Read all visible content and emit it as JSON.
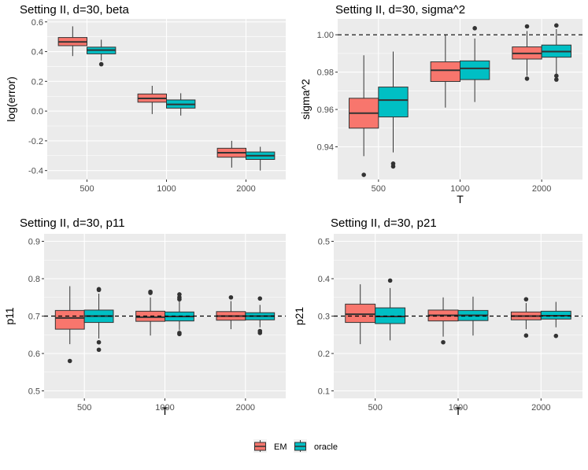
{
  "colors": {
    "EM": "#F8766D",
    "oracle": "#00BFC4",
    "panel_bg": "#EBEBEB",
    "grid": "#FFFFFF"
  },
  "legend": {
    "items": [
      {
        "name": "EM",
        "label": "EM"
      },
      {
        "name": "oracle",
        "label": "oracle"
      }
    ]
  },
  "chart_data": [
    {
      "type": "boxplot",
      "title": "Setting II, d=30, beta",
      "xlabel": "",
      "ylabel": "log(error)",
      "categories": [
        "500",
        "1000",
        "2000"
      ],
      "yticks": [
        -0.4,
        -0.2,
        0.0,
        0.2,
        0.4,
        0.6
      ],
      "ytick_labels": [
        "-0.4",
        "-0.2",
        "0.0",
        "0.2",
        "0.4",
        "0.6"
      ],
      "ylim": [
        -0.46,
        0.62
      ],
      "hline": null,
      "series": [
        {
          "name": "EM",
          "boxes": [
            {
              "lo": 0.37,
              "q1": 0.44,
              "med": 0.465,
              "q3": 0.495,
              "hi": 0.57,
              "outliers": []
            },
            {
              "lo": -0.02,
              "q1": 0.06,
              "med": 0.085,
              "q3": 0.115,
              "hi": 0.17,
              "outliers": []
            },
            {
              "lo": -0.38,
              "q1": -0.31,
              "med": -0.28,
              "q3": -0.25,
              "hi": -0.2,
              "outliers": []
            }
          ]
        },
        {
          "name": "oracle",
          "boxes": [
            {
              "lo": 0.34,
              "q1": 0.385,
              "med": 0.41,
              "q3": 0.43,
              "hi": 0.48,
              "outliers": [
                0.315
              ]
            },
            {
              "lo": -0.03,
              "q1": 0.02,
              "med": 0.045,
              "q3": 0.075,
              "hi": 0.12,
              "outliers": []
            },
            {
              "lo": -0.4,
              "q1": -0.325,
              "med": -0.3,
              "q3": -0.275,
              "hi": -0.24,
              "outliers": []
            }
          ]
        }
      ]
    },
    {
      "type": "boxplot",
      "title": "Setting II, d=30, sigma^2",
      "xlabel": "T",
      "ylabel": "sigma^2",
      "categories": [
        "500",
        "1000",
        "2000"
      ],
      "yticks": [
        0.94,
        0.96,
        0.98,
        1.0
      ],
      "ytick_labels": [
        "0.94",
        "0.96",
        "0.98",
        "1.00"
      ],
      "ylim": [
        0.9225,
        1.0085
      ],
      "hline": 1.0,
      "series": [
        {
          "name": "EM",
          "boxes": [
            {
              "lo": 0.935,
              "q1": 0.95,
              "med": 0.958,
              "q3": 0.966,
              "hi": 0.989,
              "outliers": [
                0.925
              ]
            },
            {
              "lo": 0.961,
              "q1": 0.975,
              "med": 0.981,
              "q3": 0.9855,
              "hi": 1.0,
              "outliers": []
            },
            {
              "lo": 0.978,
              "q1": 0.987,
              "med": 0.99,
              "q3": 0.9935,
              "hi": 1.002,
              "outliers": [
                1.0045,
                0.9765
              ]
            }
          ]
        },
        {
          "name": "oracle",
          "boxes": [
            {
              "lo": 0.937,
              "q1": 0.956,
              "med": 0.965,
              "q3": 0.972,
              "hi": 0.991,
              "outliers": [
                0.931,
                0.9295
              ]
            },
            {
              "lo": 0.964,
              "q1": 0.976,
              "med": 0.982,
              "q3": 0.986,
              "hi": 0.998,
              "outliers": [
                1.0035
              ]
            },
            {
              "lo": 0.979,
              "q1": 0.988,
              "med": 0.991,
              "q3": 0.9945,
              "hi": 1.003,
              "outliers": [
                1.005,
                0.978,
                0.976
              ]
            }
          ]
        }
      ]
    },
    {
      "type": "boxplot",
      "title": "Setting II, d=30, p11",
      "xlabel": "T",
      "ylabel": "p11",
      "categories": [
        "500",
        "1000",
        "2000"
      ],
      "yticks": [
        0.5,
        0.6,
        0.7,
        0.8,
        0.9
      ],
      "ytick_labels": [
        "0.5",
        "0.6",
        "0.7",
        "0.8",
        "0.9"
      ],
      "ylim": [
        0.48,
        0.92
      ],
      "hline": 0.7,
      "series": [
        {
          "name": "EM",
          "boxes": [
            {
              "lo": 0.625,
              "q1": 0.665,
              "med": 0.695,
              "q3": 0.715,
              "hi": 0.78,
              "outliers": [
                0.58
              ]
            },
            {
              "lo": 0.648,
              "q1": 0.686,
              "med": 0.697,
              "q3": 0.713,
              "hi": 0.75,
              "outliers": [
                0.762,
                0.765
              ]
            },
            {
              "lo": 0.665,
              "q1": 0.689,
              "med": 0.7,
              "q3": 0.712,
              "hi": 0.74,
              "outliers": [
                0.75
              ]
            }
          ]
        },
        {
          "name": "oracle",
          "boxes": [
            {
              "lo": 0.64,
              "q1": 0.683,
              "med": 0.7,
              "q3": 0.716,
              "hi": 0.76,
              "outliers": [
                0.61,
                0.63,
                0.77,
                0.772
              ]
            },
            {
              "lo": 0.662,
              "q1": 0.687,
              "med": 0.699,
              "q3": 0.711,
              "hi": 0.74,
              "outliers": [
                0.652,
                0.655,
                0.745,
                0.75,
                0.758
              ]
            },
            {
              "lo": 0.67,
              "q1": 0.69,
              "med": 0.7,
              "q3": 0.709,
              "hi": 0.73,
              "outliers": [
                0.655,
                0.66,
                0.747
              ]
            }
          ]
        }
      ]
    },
    {
      "type": "boxplot",
      "title": "Setting II, d=30, p21",
      "xlabel": "T",
      "ylabel": "p21",
      "categories": [
        "500",
        "1000",
        "2000"
      ],
      "yticks": [
        0.1,
        0.2,
        0.3,
        0.4,
        0.5
      ],
      "ytick_labels": [
        "0.1",
        "0.2",
        "0.3",
        "0.4",
        "0.5"
      ],
      "ylim": [
        0.08,
        0.52
      ],
      "hline": 0.3,
      "series": [
        {
          "name": "EM",
          "boxes": [
            {
              "lo": 0.225,
              "q1": 0.283,
              "med": 0.305,
              "q3": 0.332,
              "hi": 0.385,
              "outliers": []
            },
            {
              "lo": 0.245,
              "q1": 0.287,
              "med": 0.302,
              "q3": 0.316,
              "hi": 0.35,
              "outliers": [
                0.23
              ]
            },
            {
              "lo": 0.265,
              "q1": 0.29,
              "med": 0.3,
              "q3": 0.311,
              "hi": 0.335,
              "outliers": [
                0.248,
                0.345
              ]
            }
          ]
        },
        {
          "name": "oracle",
          "boxes": [
            {
              "lo": 0.235,
              "q1": 0.28,
              "med": 0.299,
              "q3": 0.322,
              "hi": 0.375,
              "outliers": [
                0.395
              ]
            },
            {
              "lo": 0.248,
              "q1": 0.288,
              "med": 0.302,
              "q3": 0.315,
              "hi": 0.352,
              "outliers": []
            },
            {
              "lo": 0.27,
              "q1": 0.292,
              "med": 0.301,
              "q3": 0.313,
              "hi": 0.338,
              "outliers": [
                0.247
              ]
            }
          ]
        }
      ]
    }
  ]
}
